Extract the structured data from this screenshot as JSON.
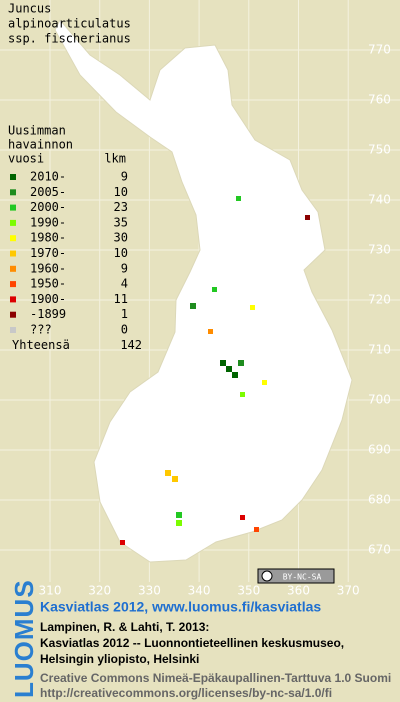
{
  "title": [
    "Juncus",
    "alpinoarticulatus",
    "ssp. fischerianus"
  ],
  "legend": {
    "header": [
      "Uusimman",
      "havainnon"
    ],
    "column_labels": [
      "vuosi",
      "lkm"
    ],
    "rows": [
      {
        "label": "2010-",
        "count": 9,
        "color": "#006400"
      },
      {
        "label": "2005-",
        "count": 10,
        "color": "#1e8c1e"
      },
      {
        "label": "2000-",
        "count": 23,
        "color": "#22c822"
      },
      {
        "label": "1990-",
        "count": 35,
        "color": "#7cfc00"
      },
      {
        "label": "1980-",
        "count": 30,
        "color": "#ffff00"
      },
      {
        "label": "1970-",
        "count": 10,
        "color": "#ffc800"
      },
      {
        "label": "1960-",
        "count": 9,
        "color": "#ff8c00"
      },
      {
        "label": "1950-",
        "count": 4,
        "color": "#ff4500"
      },
      {
        "label": "1900-",
        "count": 11,
        "color": "#dc0000"
      },
      {
        "label": "-1899",
        "count": 1,
        "color": "#8b0000"
      },
      {
        "label": "???",
        "count": 0,
        "color": "#c8c8c8"
      }
    ],
    "total": {
      "label": "Yhteensä",
      "count": 142
    }
  },
  "y_grid_labels": [
    "770",
    "760",
    "750",
    "740",
    "730",
    "720",
    "710",
    "700",
    "690",
    "680",
    "670"
  ],
  "x_grid_labels": [
    "310",
    "320",
    "330",
    "340",
    "350",
    "360",
    "370"
  ],
  "license_badge": "BY-NC-SA",
  "brand": "LUOMUS",
  "footer": {
    "link": "Kasviatlas 2012, www.luomus.fi/kasviatlas",
    "citation": [
      "Lampinen, R. & Lahti, T. 2013:",
      "Kasviatlas 2012 -- Luonnontieteellinen keskusmuseo,",
      "Helsingin yliopisto, Helsinki"
    ],
    "license": [
      "Creative Commons Nimeä-Epäkaupallinen-Tarttuva 1.0 Suomi",
      "http://creativecommons.org/licenses/by-nc-sa/1.0/fi"
    ]
  }
}
